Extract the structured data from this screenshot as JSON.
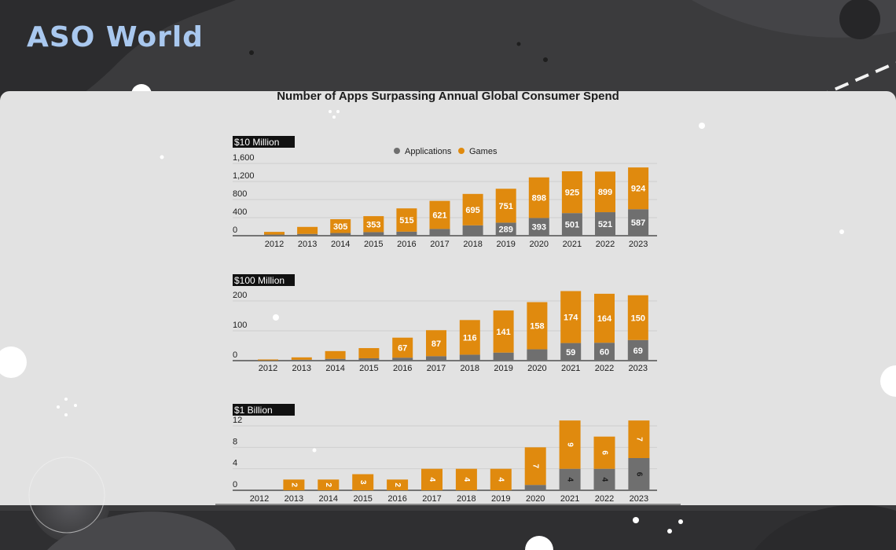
{
  "brand": {
    "logo_text": "ASO World"
  },
  "chart_data": {
    "title": "Number of Apps Surpassing Annual Global Consumer Spend",
    "legend": {
      "placement": "top-center",
      "entries": [
        {
          "name": "Applications",
          "color": "#6f6f6f"
        },
        {
          "name": "Games",
          "color": "#e08a0e"
        }
      ]
    },
    "colors": {
      "applications": "#6f6f6f",
      "games": "#e08a0e"
    },
    "panels": [
      {
        "type": "bar",
        "stacked": true,
        "threshold_label": "$10 Million",
        "categories": [
          "2012",
          "2013",
          "2014",
          "2015",
          "2016",
          "2017",
          "2018",
          "2019",
          "2020",
          "2021",
          "2022",
          "2023"
        ],
        "ylim": [
          0,
          1600
        ],
        "yticks": [
          "0",
          "400",
          "800",
          "1,200",
          "1,600"
        ],
        "series": [
          {
            "name": "Applications",
            "values": [
              25,
              40,
              60,
              80,
              90,
              150,
              230,
              289,
              393,
              501,
              521,
              587
            ],
            "labels": [
              "",
              "",
              "",
              "",
              "",
              "",
              "",
              "289",
              "393",
              "501",
              "521",
              "587"
            ]
          },
          {
            "name": "Games",
            "values": [
              60,
              155,
              305,
              353,
              515,
              621,
              695,
              751,
              898,
              925,
              899,
              924
            ],
            "labels": [
              "",
              "",
              "305",
              "353",
              "515",
              "621",
              "695",
              "751",
              "898",
              "925",
              "899",
              "924"
            ]
          }
        ]
      },
      {
        "type": "bar",
        "stacked": true,
        "threshold_label": "$100 Million",
        "categories": [
          "2012",
          "2013",
          "2014",
          "2015",
          "2016",
          "2017",
          "2018",
          "2019",
          "2020",
          "2021",
          "2022",
          "2023"
        ],
        "ylim": [
          0,
          200
        ],
        "yticks": [
          "0",
          "100",
          "200"
        ],
        "series": [
          {
            "name": "Applications",
            "values": [
              1,
              3,
              6,
              8,
              10,
              15,
              20,
              27,
              38,
              59,
              60,
              69
            ],
            "labels": [
              "",
              "",
              "",
              "",
              "",
              "",
              "",
              "",
              "",
              "59",
              "60",
              "69"
            ]
          },
          {
            "name": "Games",
            "values": [
              3,
              8,
              26,
              34,
              67,
              87,
              116,
              141,
              158,
              174,
              164,
              150
            ],
            "labels": [
              "",
              "",
              "",
              "",
              "67",
              "87",
              "116",
              "141",
              "158",
              "174",
              "164",
              "150"
            ]
          }
        ]
      },
      {
        "type": "bar",
        "stacked": true,
        "threshold_label": "$1 Billion",
        "categories": [
          "2012",
          "2013",
          "2014",
          "2015",
          "2016",
          "2017",
          "2018",
          "2019",
          "2020",
          "2021",
          "2022",
          "2023"
        ],
        "ylim": [
          0,
          12
        ],
        "yticks": [
          "0",
          "4",
          "8",
          "12"
        ],
        "series": [
          {
            "name": "Applications",
            "values": [
              0,
              0,
              0,
              0,
              0,
              0,
              0,
              0,
              1,
              4,
              4,
              6
            ],
            "labels": [
              "",
              "",
              "",
              "",
              "",
              "",
              "",
              "",
              "",
              "4",
              "4",
              "6"
            ]
          },
          {
            "name": "Games",
            "values": [
              0,
              2,
              2,
              3,
              2,
              4,
              4,
              4,
              7,
              9,
              6,
              7
            ],
            "labels": [
              "",
              "2",
              "2",
              "3",
              "2",
              "4",
              "4",
              "4",
              "7",
              "9",
              "6",
              "7"
            ]
          }
        ]
      }
    ]
  }
}
